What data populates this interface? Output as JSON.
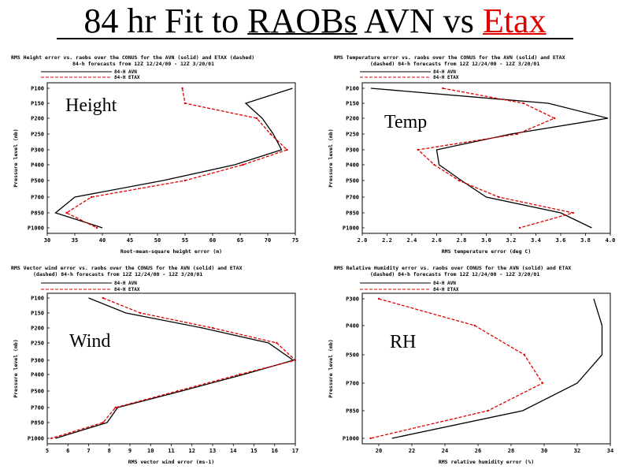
{
  "title": {
    "prefix": "84 hr Fit to",
    "raobs": "RAOBs",
    "mid": "AVN vs",
    "etax": "Etax",
    "etax_color": "#e00000"
  },
  "legend_labels": {
    "solid": "84-H AVN",
    "dashed": "84-H ETAX"
  },
  "colors": {
    "avn": "#000000",
    "etax": "#e00000"
  },
  "chart_data": [
    {
      "type": "line",
      "id": "height",
      "panel_label": "Height",
      "title": "RMS Height error vs. raobs over the CONUS for the AVN (solid) and ETAX (dashed)",
      "subtitle": "84-h forecasts from 12Z 12/24/00 - 12Z 3/20/01",
      "xlabel": "Root-mean-square height error (m)",
      "ylabel": "Pressure level (mb)",
      "xlim": [
        30,
        75
      ],
      "xticks": [
        30,
        35,
        40,
        45,
        50,
        55,
        60,
        65,
        70,
        75
      ],
      "levels": [
        "P100",
        "P150",
        "P200",
        "P250",
        "P300",
        "P400",
        "P500",
        "P700",
        "P850",
        "P1000"
      ],
      "series": [
        {
          "name": "84-H AVN",
          "values": [
            74.5,
            66,
            69,
            71,
            72.5,
            64,
            51,
            35,
            31.5,
            40
          ]
        },
        {
          "name": "84-H ETAX",
          "values": [
            54.5,
            55,
            68,
            70.5,
            73.5,
            65.5,
            55,
            38,
            33.5,
            39
          ]
        }
      ]
    },
    {
      "type": "line",
      "id": "temp",
      "panel_label": "Temp",
      "title": "RMS Temperature error vs. raobs over the CONUS for the AVN (solid) and ETAX",
      "subtitle": "(dashed) 84-h forecasts from 12Z 12/24/00 - 12Z 3/20/01",
      "xlabel": "RMS temperature error (deg C)",
      "ylabel": "Pressure level (mb)",
      "xlim": [
        2.0,
        4.0
      ],
      "xticks": [
        "2.0",
        "2.2",
        "2.4",
        "2.6",
        "2.8",
        "3.0",
        "3.2",
        "3.4",
        "3.6",
        "3.8",
        "4.0"
      ],
      "levels": [
        "P100",
        "P150",
        "P200",
        "P250",
        "P300",
        "P400",
        "P500",
        "P700",
        "P850",
        "P1000"
      ],
      "series": [
        {
          "name": "84-H AVN",
          "values": [
            2.07,
            3.5,
            3.98,
            3.2,
            2.6,
            2.62,
            2.8,
            3.0,
            3.6,
            3.85
          ]
        },
        {
          "name": "84-H ETAX",
          "values": [
            2.65,
            3.3,
            3.55,
            3.25,
            2.45,
            2.58,
            2.78,
            3.1,
            3.7,
            3.27
          ]
        }
      ]
    },
    {
      "type": "line",
      "id": "wind",
      "panel_label": "Wind",
      "title": "RMS Vector wind error vs. raobs over the CONUS for the AVN (solid) and ETAX",
      "subtitle": "(dashed) 84-h forecasts from 12Z 12/24/00 - 12Z 3/20/01",
      "xlabel": "RMS vector wind error (ms-1)",
      "ylabel": "Pressure level (mb)",
      "xlim": [
        5,
        17
      ],
      "xticks": [
        5,
        6,
        7,
        8,
        9,
        10,
        11,
        12,
        13,
        14,
        15,
        16,
        17
      ],
      "levels": [
        "P100",
        "P150",
        "P200",
        "P250",
        "P300",
        "P400",
        "P500",
        "P700",
        "P850",
        "P1000"
      ],
      "series": [
        {
          "name": "84-H AVN",
          "values": [
            7.0,
            8.8,
            12.5,
            15.7,
            16.9,
            14.5,
            11.5,
            8.4,
            7.9,
            5.4
          ]
        },
        {
          "name": "84-H ETAX",
          "values": [
            7.7,
            9.5,
            13.0,
            16.1,
            17.0,
            14.3,
            11.3,
            8.3,
            7.7,
            5.2
          ]
        }
      ]
    },
    {
      "type": "line",
      "id": "rh",
      "panel_label": "RH",
      "title": "RMS Relative Humidity error vs. raobs over CONUS for the AVN (solid) and ETAX",
      "subtitle": "(dashed) 84-h forecasts from 12Z 12/24/00 - 12Z 3/20/01",
      "xlabel": "RMS relative humidity error (%)",
      "ylabel": "Pressure level (mb)",
      "xlim": [
        19,
        34
      ],
      "xticks": [
        20,
        22,
        24,
        26,
        28,
        30,
        32,
        34
      ],
      "levels": [
        "P300",
        "P400",
        "P500",
        "P700",
        "P850",
        "P1000"
      ],
      "series": [
        {
          "name": "84-H AVN",
          "values": [
            33.0,
            33.5,
            33.5,
            32.0,
            28.7,
            20.8
          ]
        },
        {
          "name": "84-H ETAX",
          "values": [
            20.0,
            25.8,
            28.8,
            29.9,
            26.6,
            19.5
          ]
        }
      ]
    }
  ]
}
